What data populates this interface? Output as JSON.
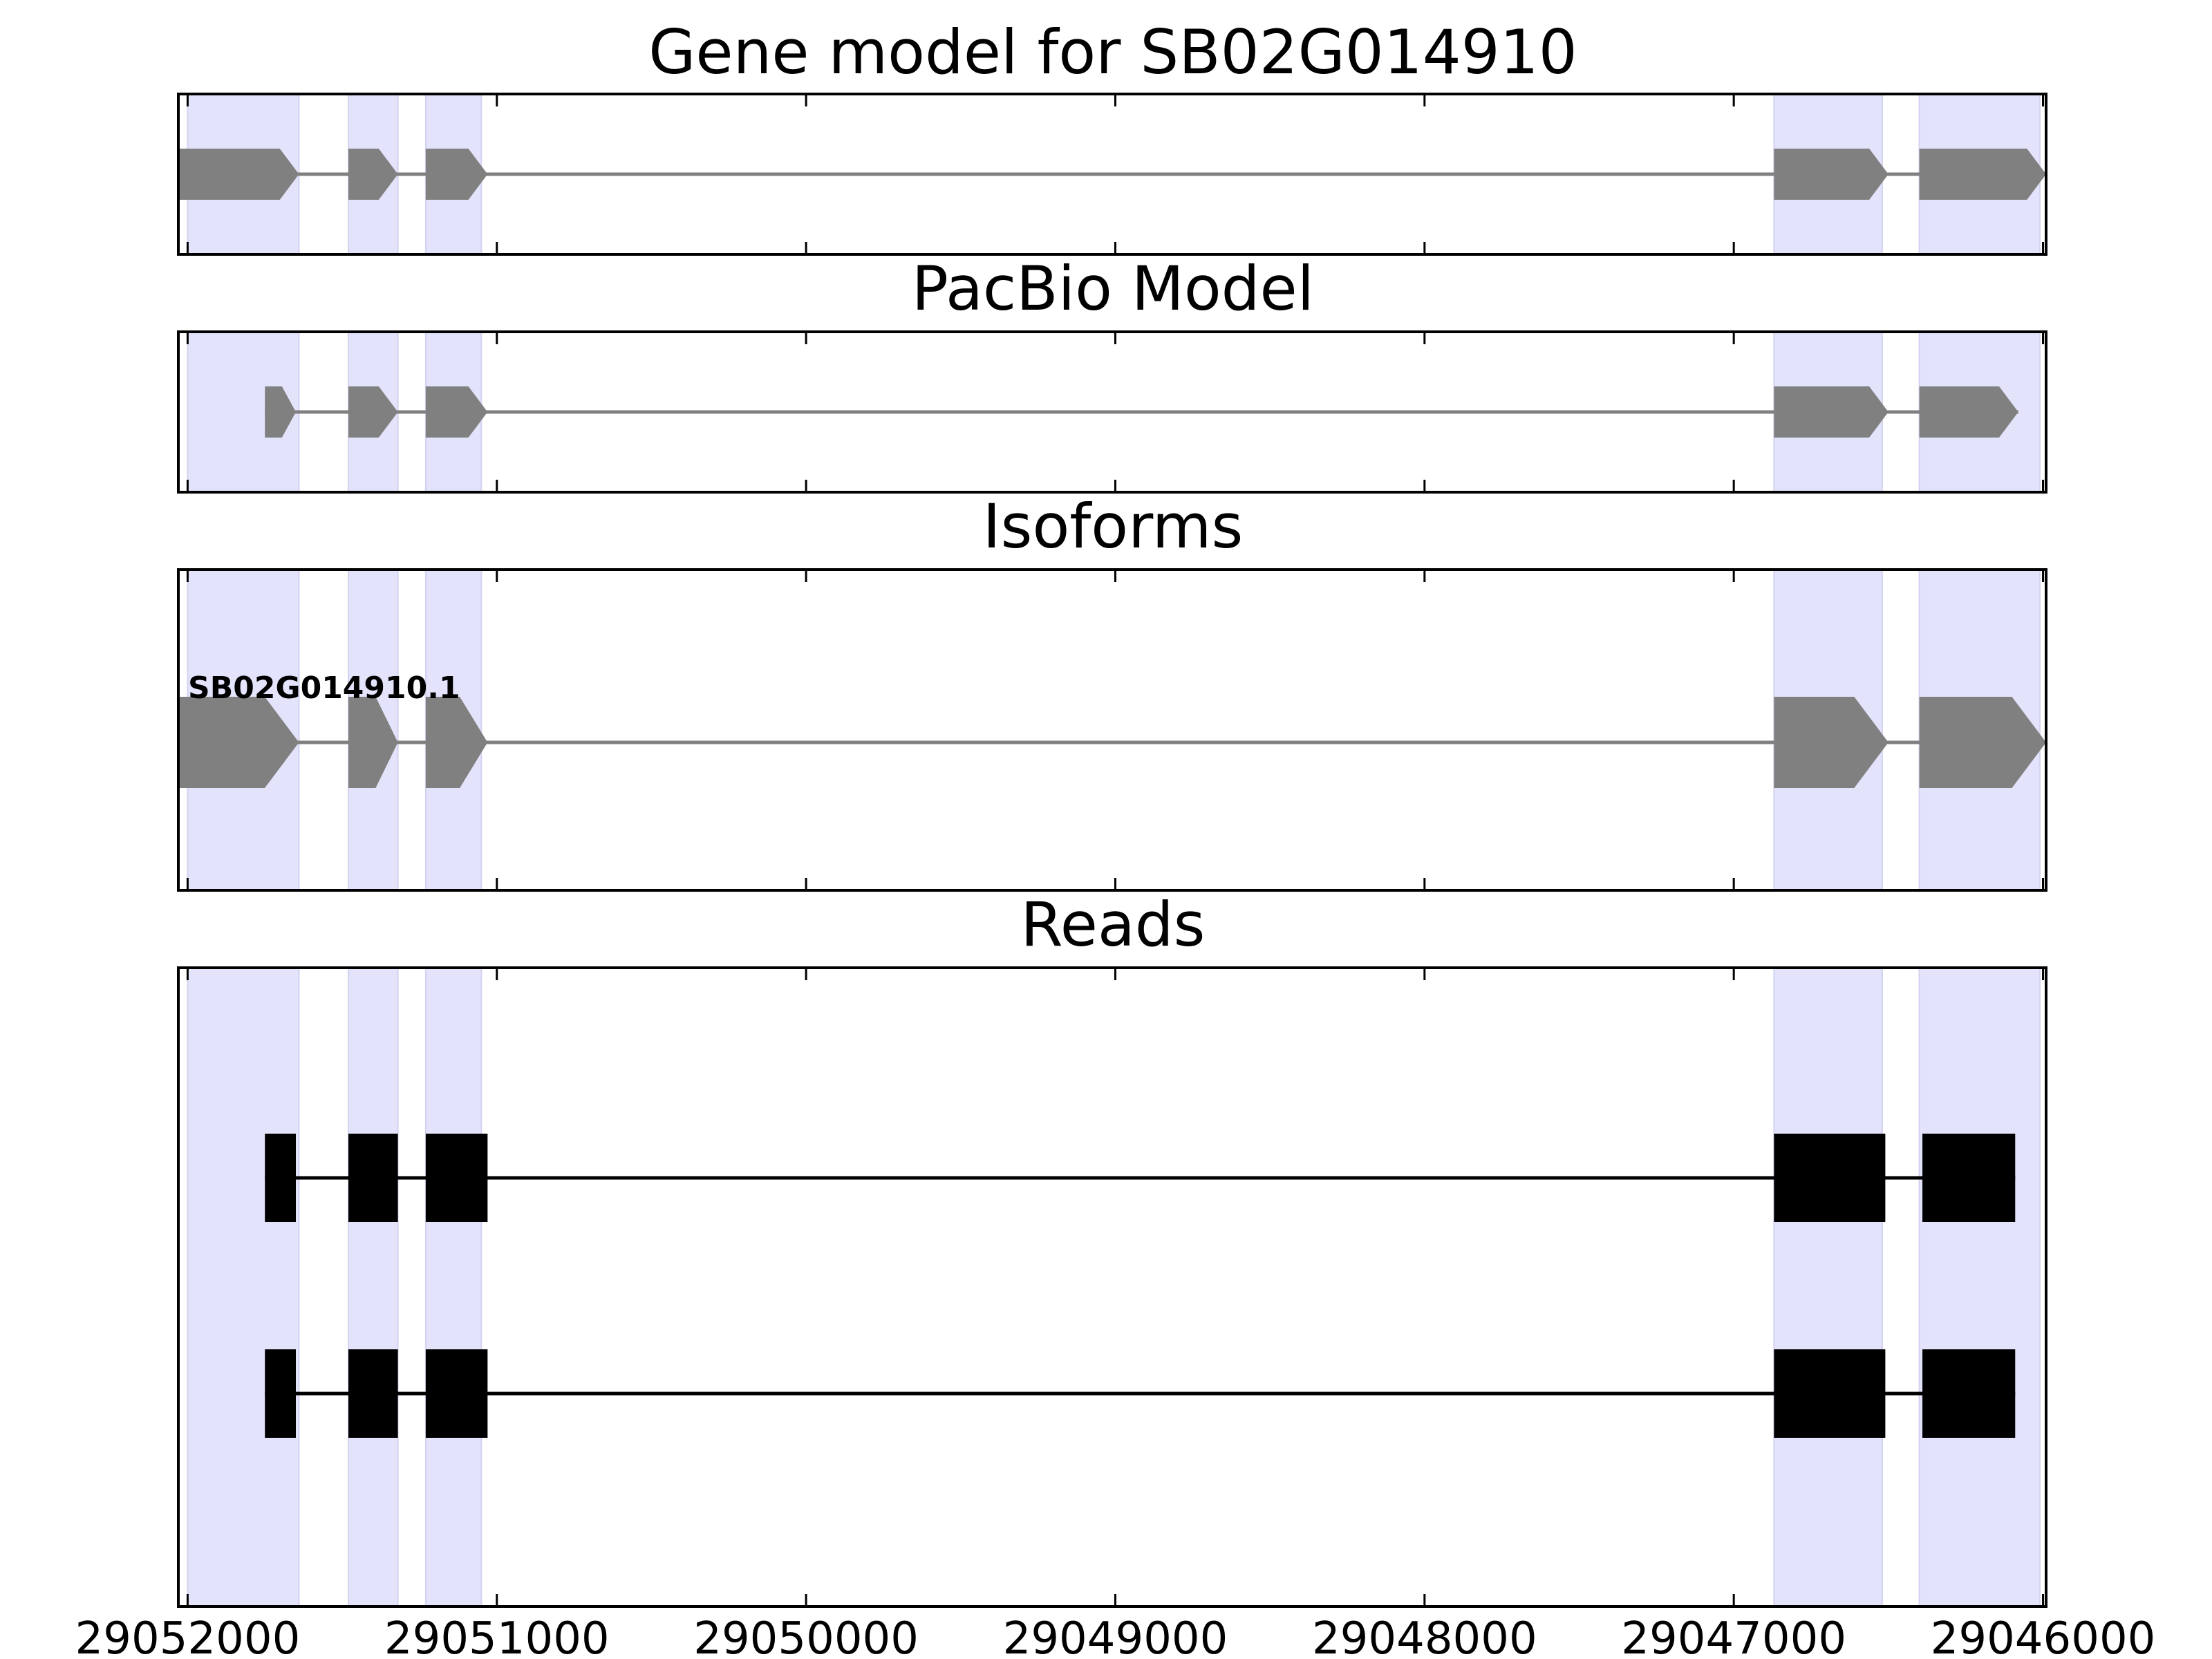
{
  "figure": {
    "panels": [
      {
        "id": "gene_model",
        "title": "Gene model for SB02G014910"
      },
      {
        "id": "pacbio_model",
        "title": "PacBio Model"
      },
      {
        "id": "isoforms",
        "title": "Isoforms",
        "isoform_label": "SB02G014910.1"
      },
      {
        "id": "reads",
        "title": "Reads"
      }
    ],
    "x_axis": {
      "ticks": [
        "29052000",
        "29051000",
        "29050000",
        "29049000",
        "29048000",
        "29047000",
        "29046000"
      ],
      "reversed": true,
      "domain": [
        29052030,
        29045990
      ]
    },
    "highlight_color": "#e3e3fb",
    "feature_color": "#808080",
    "read_color": "#000000"
  },
  "chart_data": {
    "type": "gene_structure",
    "strand": "-",
    "highlight_regions": [
      [
        29052000,
        29051640
      ],
      [
        29051480,
        29051320
      ],
      [
        29051230,
        29051050
      ],
      [
        29046870,
        29046520
      ],
      [
        29046400,
        29046010
      ]
    ],
    "gene_model": {
      "name": "SB02G014910",
      "exons": [
        [
          29052030,
          29051640
        ],
        [
          29051480,
          29051320
        ],
        [
          29051230,
          29051030
        ],
        [
          29046870,
          29046500
        ],
        [
          29046400,
          29045990
        ]
      ]
    },
    "pacbio_model": {
      "exons": [
        [
          29051750,
          29051650
        ],
        [
          29051480,
          29051320
        ],
        [
          29051230,
          29051030
        ],
        [
          29046870,
          29046500
        ],
        [
          29046400,
          29046080
        ]
      ]
    },
    "isoforms": [
      {
        "name": "SB02G014910.1",
        "exons": [
          [
            29052030,
            29051640
          ],
          [
            29051480,
            29051320
          ],
          [
            29051230,
            29051030
          ],
          [
            29046870,
            29046500
          ],
          [
            29046400,
            29045990
          ]
        ]
      }
    ],
    "reads": [
      {
        "exons": [
          [
            29051750,
            29051650
          ],
          [
            29051480,
            29051320
          ],
          [
            29051230,
            29051030
          ],
          [
            29046870,
            29046510
          ],
          [
            29046390,
            29046090
          ]
        ]
      },
      {
        "exons": [
          [
            29051750,
            29051650
          ],
          [
            29051480,
            29051320
          ],
          [
            29051230,
            29051030
          ],
          [
            29046870,
            29046510
          ],
          [
            29046390,
            29046090
          ]
        ]
      }
    ]
  }
}
